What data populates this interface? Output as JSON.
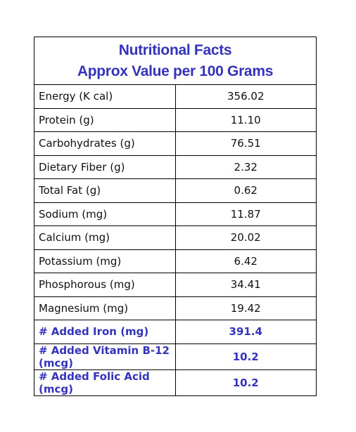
{
  "header": {
    "title_line1": "Nutritional Facts",
    "title_line2": "Approx Value per 100 Grams"
  },
  "colors": {
    "accent": "#3333bb",
    "text": "#111111",
    "border": "#000000"
  },
  "rows": [
    {
      "label": "Energy (K cal)",
      "value": "356.02"
    },
    {
      "label": "Protein (g)",
      "value": "11.10"
    },
    {
      "label": "Carbohydrates (g)",
      "value": "76.51"
    },
    {
      "label": "Dietary Fiber (g)",
      "value": "2.32"
    },
    {
      "label": "Total Fat (g)",
      "value": "0.62"
    },
    {
      "label": "Sodium (mg)",
      "value": "11.87"
    },
    {
      "label": "Calcium (mg)",
      "value": "20.02"
    },
    {
      "label": "Potassium (mg)",
      "value": "6.42"
    },
    {
      "label": "Phosphorous (mg)",
      "value": "34.41"
    },
    {
      "label": "Magnesium (mg)",
      "value": "19.42"
    },
    {
      "label": "# Added Iron (mg)",
      "value": "391.4"
    },
    {
      "label": "# Added Vitamin B-12 (mcg)",
      "value": "10.2"
    },
    {
      "label": "# Added Folic Acid (mcg)",
      "value": "10.2"
    }
  ]
}
